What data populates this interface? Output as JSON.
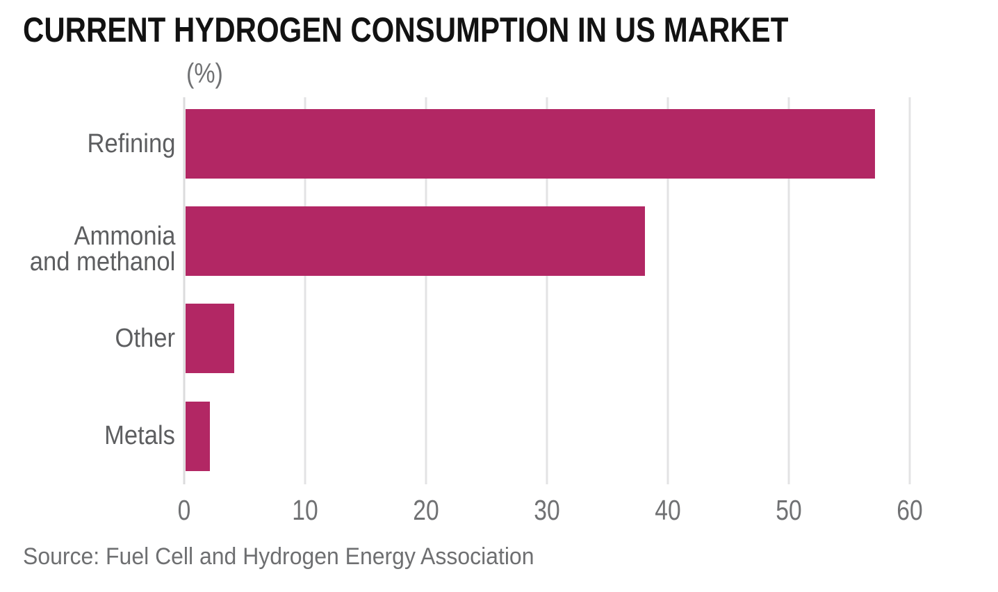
{
  "title": "CURRENT HYDROGEN CONSUMPTION IN US MARKET",
  "source": "Source: Fuel Cell and Hydrogen Energy Association",
  "colors": {
    "bar": "#b22764",
    "title": "#121212",
    "category_label": "#5d5e60",
    "tick_label": "#707173",
    "source_text": "#6e6f71",
    "gridline": "#e3e3e4",
    "axis_line": "#dbdbdc",
    "background": "#ffffff"
  },
  "chart_data": {
    "type": "bar",
    "orientation": "horizontal",
    "title": "CURRENT HYDROGEN CONSUMPTION IN US MARKET",
    "xlabel": "(%)",
    "ylabel": "",
    "categories": [
      "Refining",
      "Ammonia and methanol",
      "Other",
      "Metals"
    ],
    "category_label_lines": [
      [
        "Refining"
      ],
      [
        "Ammonia",
        "and methanol"
      ],
      [
        "Other"
      ],
      [
        "Metals"
      ]
    ],
    "values": [
      57,
      38,
      4,
      2
    ],
    "xlim": [
      0,
      60
    ],
    "xticks": [
      0,
      10,
      20,
      30,
      40,
      50,
      60
    ],
    "grid": "vertical-gridlines-on",
    "legend": false,
    "source": "Source: Fuel Cell and Hydrogen Energy Association"
  }
}
